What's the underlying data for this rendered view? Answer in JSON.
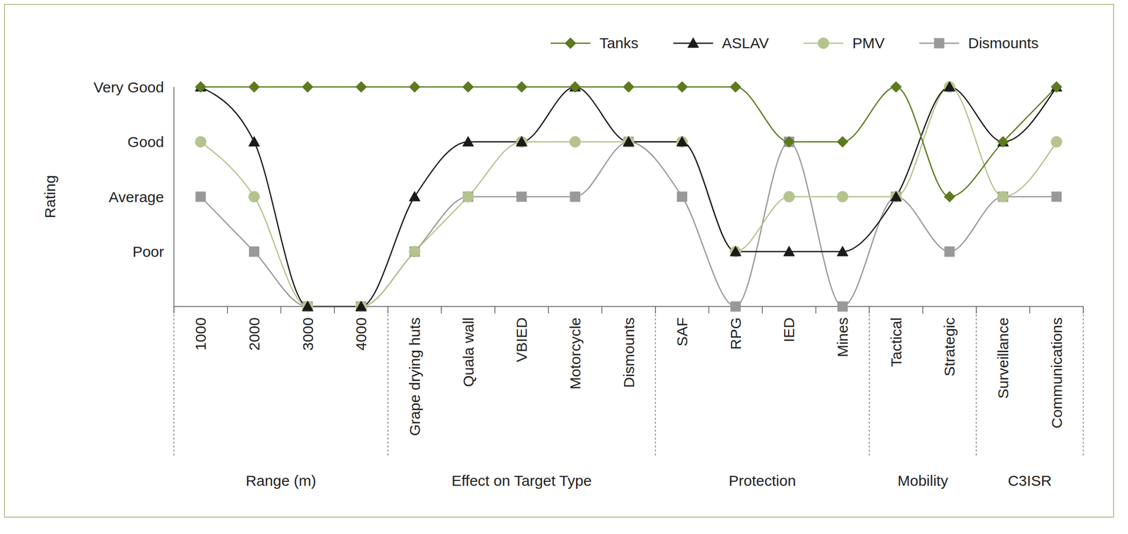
{
  "chart_data": {
    "type": "line",
    "y_label": "Rating",
    "categories": [
      "1000",
      "2000",
      "3000",
      "4000",
      "Grape drying huts",
      "Quala wall",
      "VBIED",
      "Motorcycle",
      "Dismounts",
      "SAF",
      "RPG",
      "IED",
      "Mines",
      "Tactical",
      "Strategic",
      "Surveillance",
      "Communications"
    ],
    "category_groups": [
      {
        "label": "Range (m)",
        "categories": [
          "1000",
          "2000",
          "3000",
          "4000"
        ]
      },
      {
        "label": "Effect on Target Type",
        "categories": [
          "Grape drying huts",
          "Quala wall",
          "VBIED",
          "Motorcycle",
          "Dismounts"
        ]
      },
      {
        "label": "Protection",
        "categories": [
          "SAF",
          "RPG",
          "IED",
          "Mines"
        ]
      },
      {
        "label": "Mobility",
        "categories": [
          "Tactical",
          "Strategic"
        ]
      },
      {
        "label": "C3ISR",
        "categories": [
          "Surveillance",
          "Communications"
        ]
      }
    ],
    "series": [
      {
        "name": "Tanks",
        "color": "#5c7a1e",
        "marker": "diamond",
        "values": [
          4,
          4,
          4,
          4,
          4,
          4,
          4,
          4,
          4,
          4,
          4,
          3,
          3,
          4,
          2,
          3,
          4
        ]
      },
      {
        "name": "ASLAV",
        "color": "#1a1a1a",
        "marker": "triangle",
        "values": [
          4,
          3,
          0,
          0,
          2,
          3,
          3,
          4,
          3,
          3,
          1,
          1,
          1,
          2,
          4,
          3,
          4
        ]
      },
      {
        "name": "PMV",
        "color": "#b5c48e",
        "marker": "circle",
        "values": [
          3,
          2,
          0,
          0,
          1,
          2,
          3,
          3,
          3,
          3,
          1,
          2,
          2,
          2,
          4,
          2,
          3
        ]
      },
      {
        "name": "Dismounts",
        "color": "#999999",
        "marker": "square",
        "values": [
          2,
          1,
          0,
          0,
          1,
          2,
          2,
          2,
          3,
          2,
          0,
          3,
          0,
          2,
          1,
          2,
          2
        ]
      }
    ],
    "ylim": [
      0,
      4
    ],
    "yticks": [
      {
        "value": 1,
        "label": "Poor"
      },
      {
        "value": 2,
        "label": "Average"
      },
      {
        "value": 3,
        "label": "Good"
      },
      {
        "value": 4,
        "label": "Very Good"
      }
    ],
    "grid": false,
    "legend": "top-right"
  }
}
